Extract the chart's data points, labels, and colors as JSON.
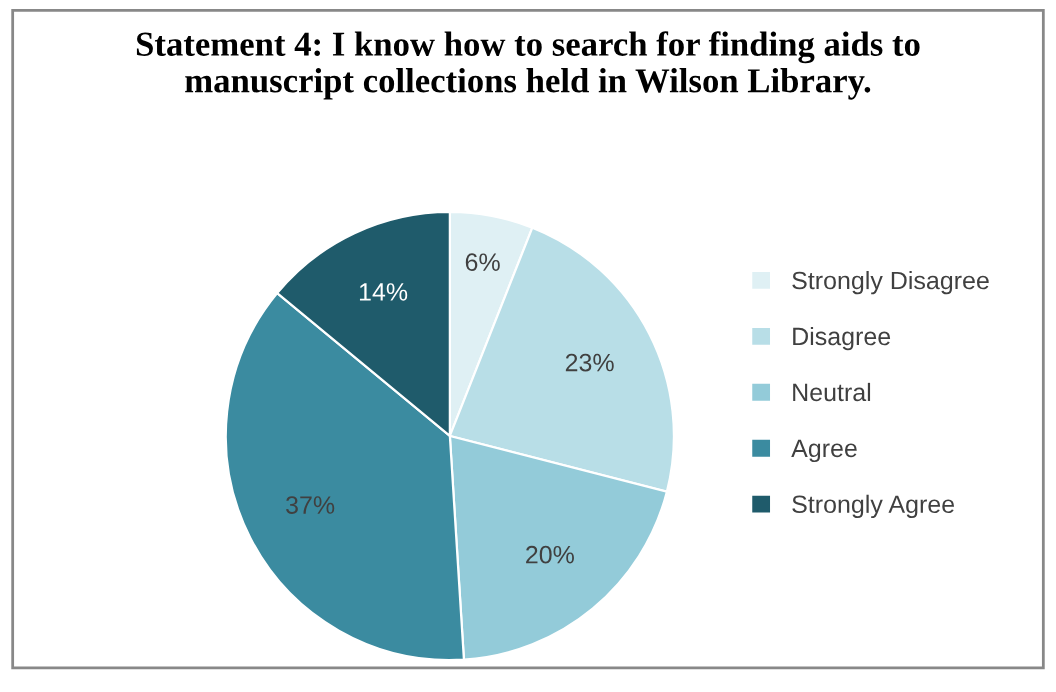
{
  "chart_data": {
    "type": "pie",
    "title": "Statement 4: I know how to search for finding aids to\nmanuscript collections held in Wilson Library.",
    "categories": [
      "Strongly Disagree",
      "Disagree",
      "Neutral",
      "Agree",
      "Strongly Agree"
    ],
    "values": [
      6,
      23,
      20,
      37,
      14
    ],
    "colors": [
      "#dff0f4",
      "#b8dee7",
      "#93cbd9",
      "#3b8ba0",
      "#1f5b6b"
    ],
    "value_labels": [
      "6%",
      "23%",
      "20%",
      "37%",
      "14%"
    ],
    "legend": "right"
  }
}
